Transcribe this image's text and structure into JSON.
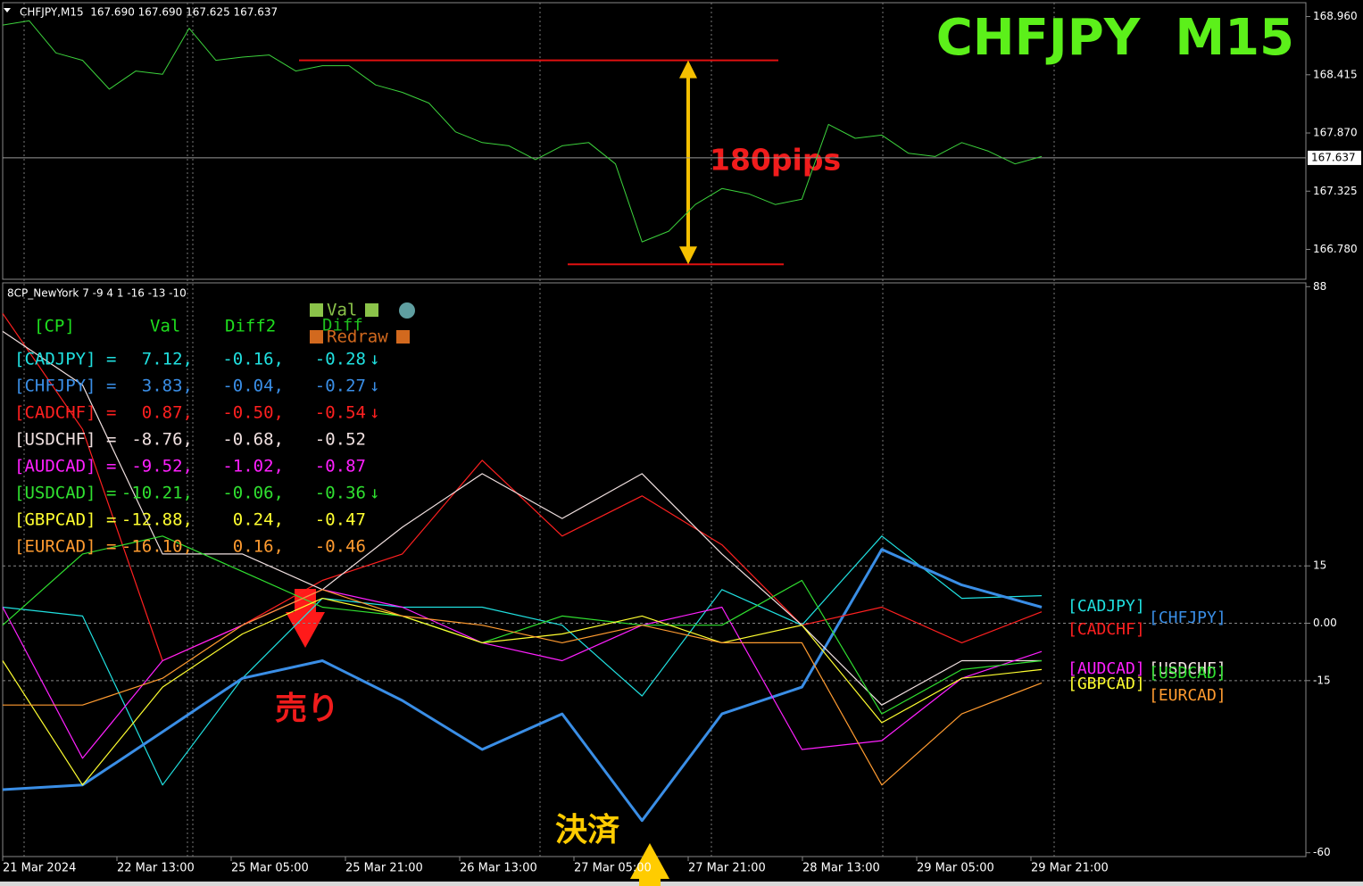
{
  "header": "CHFJPY,M15  167.690 167.690 167.625 167.637",
  "big_title": "CHFJPY  M15",
  "annotations": {
    "range": "180pips",
    "sell": "売り",
    "close": "決済"
  },
  "chart_data": [
    {
      "type": "line",
      "color": "#3cd23c",
      "ylim": [
        166.5,
        169.09
      ],
      "yticks": [
        {
          "value": 168.96,
          "label": "168.960"
        },
        168.415,
        {
          "value": 167.87,
          "label": "167.870"
        },
        167.325,
        {
          "value": 166.78,
          "label": "166.780"
        }
      ],
      "last_price": 167.637,
      "hlines": [
        168.55,
        166.64
      ],
      "hline_color": "#e01010",
      "values": [
        168.88,
        168.92,
        168.62,
        168.55,
        168.28,
        168.45,
        168.42,
        168.85,
        168.55,
        168.58,
        168.6,
        168.45,
        168.5,
        168.5,
        168.32,
        168.25,
        168.15,
        167.88,
        167.78,
        167.75,
        167.62,
        167.75,
        167.78,
        167.58,
        166.85,
        166.95,
        167.2,
        167.35,
        167.3,
        167.2,
        167.25,
        167.95,
        167.82,
        167.85,
        167.68,
        167.65,
        167.78,
        167.7,
        167.58,
        167.65
      ]
    },
    {
      "type": "line",
      "title": "8CP_NewYork 7 -9 4 1 -16 -13 -10",
      "ylim": [
        -61,
        89
      ],
      "yticks": [
        88,
        15,
        {
          "value": 0,
          "label": "0.00"
        },
        -15,
        -60
      ],
      "x_labels": [
        "21 Mar 2024",
        "22 Mar 13:00",
        "25 Mar 05:00",
        "25 Mar 21:00",
        "26 Mar 13:00",
        "27 Mar 05:00",
        "27 Mar 21:00",
        "28 Mar 13:00",
        "29 Mar 05:00",
        "29 Mar 21:00"
      ],
      "series": [
        {
          "name": "[CADJPY]",
          "color": "#20e0e0",
          "values": [
            4.2,
            1.9,
            -42.3,
            -14.4,
            6.5,
            4.2,
            4.2,
            -0.5,
            -19,
            8.8,
            -0.5,
            22.8,
            6.5,
            7.2
          ]
        },
        {
          "name": "[CHFJPY]",
          "color": "#3a8ee6",
          "values": [
            -43.5,
            -42.3,
            -28.4,
            -14.4,
            -9.8,
            -20.2,
            -33,
            -23.7,
            -51.6,
            -23.7,
            -16.7,
            19.3,
            10,
            4.2
          ]
        },
        {
          "name": "[CADCHF]",
          "color": "#ff2020",
          "values": [
            81,
            50.7,
            -9.8,
            -0.5,
            11.2,
            18.1,
            42.6,
            22.8,
            33.3,
            20.5,
            -0.5,
            4.2,
            -5.1,
            3
          ]
        },
        {
          "name": "[USDCHF]",
          "color": "#f0e0e0",
          "values": [
            76.3,
            62.3,
            18.1,
            18.1,
            8.8,
            25.1,
            39.1,
            27.4,
            39.1,
            18.1,
            -0.5,
            -21.4,
            -9.8,
            -9.8
          ]
        },
        {
          "name": "[AUDCAD]",
          "color": "#ff20ff",
          "values": [
            4.2,
            -35.3,
            -9.8,
            -0.5,
            8.8,
            4.2,
            -5.1,
            -9.8,
            -0.5,
            4.2,
            -33,
            -30.7,
            -14.4,
            -7.4
          ]
        },
        {
          "name": "[USDCAD]",
          "color": "#30e030",
          "values": [
            -0.5,
            18.1,
            22.8,
            13.5,
            4.2,
            1.9,
            -5.1,
            1.9,
            -0.5,
            -0.5,
            11.2,
            -23.7,
            -12.1,
            -9.8
          ]
        },
        {
          "name": "[GBPCAD]",
          "color": "#ffff30",
          "values": [
            -9.8,
            -42.3,
            -16.7,
            -2.8,
            6.5,
            1.9,
            -5.1,
            -2.8,
            1.9,
            -5.1,
            -0.5,
            -26,
            -14.4,
            -12.1
          ]
        },
        {
          "name": "[EURCAD]",
          "color": "#ff9b30",
          "values": [
            -21.4,
            -21.4,
            -14.4,
            -0.5,
            8.8,
            1.9,
            -0.5,
            -5.1,
            -0.5,
            -5.1,
            -5.1,
            -42.3,
            -23.7,
            -15.6
          ]
        }
      ]
    }
  ],
  "panel": {
    "header": [
      "[CP]",
      "Val",
      "Diff2"
    ],
    "buttons": [
      "Val",
      "Diff",
      "Redraw"
    ],
    "rows": [
      [
        "[CADJPY] =",
        "7.12,",
        "-0.16,",
        "-0.28",
        "↓"
      ],
      [
        "[CHFJPY] =",
        "3.83,",
        "-0.04,",
        "-0.27",
        "↓"
      ],
      [
        "[CADCHF] =",
        "0.87,",
        "-0.50,",
        "-0.54",
        "↓"
      ],
      [
        "[USDCHF] =",
        "-8.76,",
        "-0.68,",
        "-0.52",
        ""
      ],
      [
        "[AUDCAD] =",
        "-9.52,",
        "-1.02,",
        "-0.87",
        ""
      ],
      [
        "[USDCAD] =",
        "-10.21,",
        "-0.06,",
        "-0.36",
        "↓"
      ],
      [
        "[GBPCAD] =",
        "-12.88,",
        "0.24,",
        "-0.47",
        ""
      ],
      [
        "[EURCAD] =",
        "-16.10,",
        "0.16,",
        "-0.46",
        ""
      ]
    ]
  }
}
